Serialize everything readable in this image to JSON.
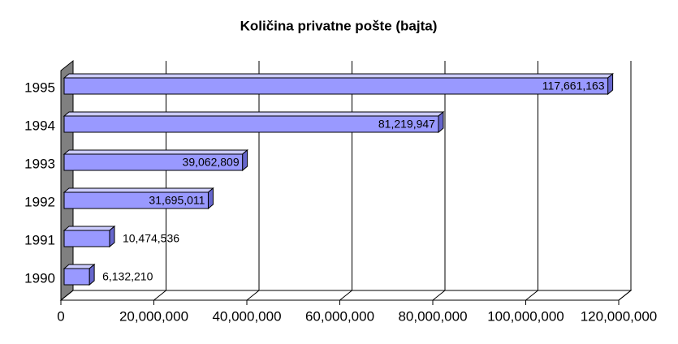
{
  "chart_data": {
    "type": "bar",
    "orientation": "horizontal",
    "title": "Količina privatne pošte (bajta)",
    "categories": [
      "1995",
      "1994",
      "1993",
      "1992",
      "1991",
      "1990"
    ],
    "values": [
      117661163,
      81219947,
      39062809,
      31695011,
      10474536,
      6132210
    ],
    "value_labels": [
      "117,661,163",
      "81,219,947",
      "39,062,809",
      "31,695,011",
      "10,474,536",
      "6,132,210"
    ],
    "color": "#9999ff",
    "xlim": [
      0,
      120000000
    ],
    "xticks": [
      0,
      {
        "value": 20000000,
        "label": "20,000,000"
      },
      {
        "value": 40000000,
        "label": "40,000,000"
      },
      {
        "value": 60000000,
        "label": "60,000,000"
      },
      {
        "value": 80000000,
        "label": "80,000,000"
      },
      {
        "value": 100000000,
        "label": "100,000,000"
      },
      {
        "value": 120000000,
        "label": "120,000,000"
      }
    ],
    "grid": true
  }
}
